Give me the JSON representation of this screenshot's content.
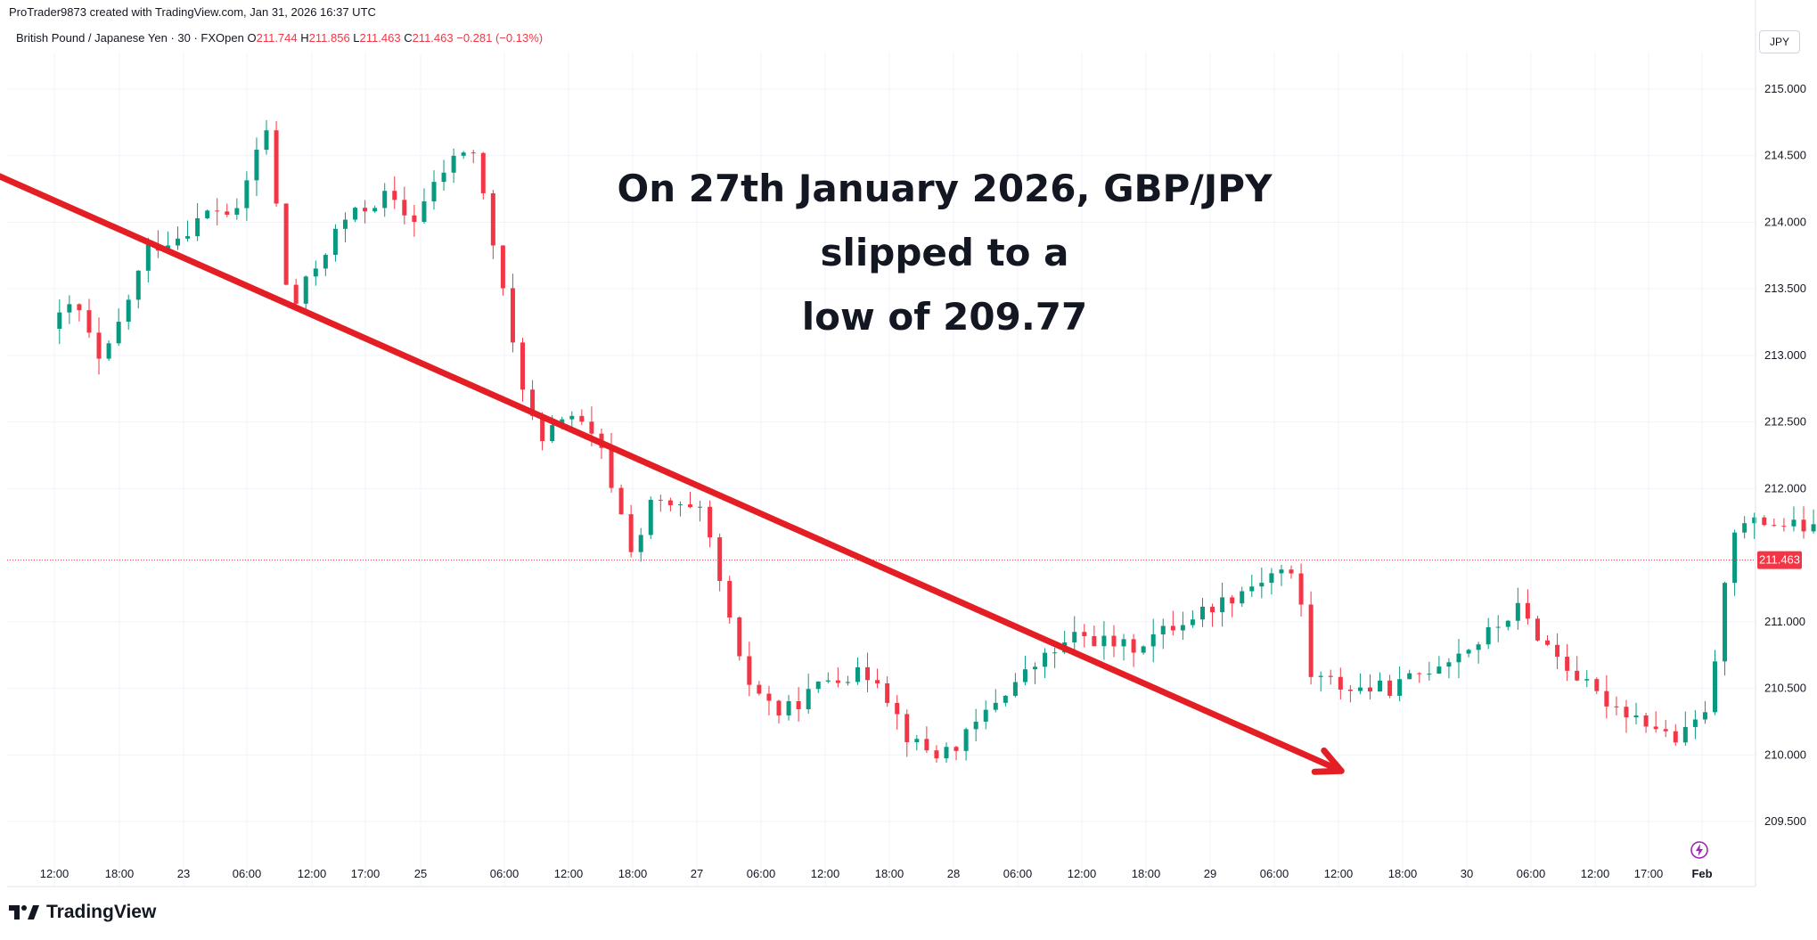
{
  "attribution": "ProTrader9873 created with TradingView.com, Jan 31, 2026 16:37 UTC",
  "legend": {
    "symbol": "British Pound / Japanese Yen · 30 · FXOpen",
    "open_label": "O",
    "open": "211.744",
    "high_label": "H",
    "high": "211.856",
    "low_label": "L",
    "low": "211.463",
    "close_label": "C",
    "close": "211.463",
    "change": "−0.281 (−0.13%)"
  },
  "currency_button": "JPY",
  "annotation": {
    "line1": "On 27th January 2026, GBP/JPY slipped to a",
    "line2": "low of 209.77"
  },
  "brand": {
    "name": "TradingView",
    "icon": "tradingview-logo-icon"
  },
  "flash_icon": "lightning-icon",
  "colors": {
    "up": "#089981",
    "down": "#f23645",
    "arrow": "#e31e24",
    "text": "#131722"
  },
  "chart_data": {
    "type": "candlestick",
    "current_price": 211.463,
    "current_price_label": "211.463",
    "ylim": [
      209.05,
      215.6
    ],
    "yticks": [
      "215.000",
      "214.500",
      "214.000",
      "213.500",
      "213.000",
      "212.500",
      "212.000",
      "211.000",
      "210.500",
      "210.000",
      "209.500"
    ],
    "xticks": [
      "12:00",
      "18:00",
      "23",
      "06:00",
      "12:00",
      "17:00",
      "25",
      "06:00",
      "12:00",
      "18:00",
      "27",
      "06:00",
      "12:00",
      "18:00",
      "28",
      "06:00",
      "12:00",
      "18:00",
      "29",
      "06:00",
      "12:00",
      "18:00",
      "30",
      "06:00",
      "12:00",
      "17:00",
      "Feb"
    ],
    "arrow": {
      "from": [
        22.05,
        214.55
      ],
      "to": [
        27.48,
        209.88
      ]
    },
    "anchors": [
      [
        22.52,
        213.2
      ],
      [
        22.62,
        213.4
      ],
      [
        22.72,
        212.9
      ],
      [
        22.9,
        213.8
      ],
      [
        23.02,
        213.9
      ],
      [
        23.15,
        214.1
      ],
      [
        23.25,
        214.05
      ],
      [
        23.3,
        214.45
      ],
      [
        23.36,
        214.7
      ],
      [
        23.45,
        213.3
      ],
      [
        23.5,
        213.5
      ],
      [
        23.65,
        214.0
      ],
      [
        23.82,
        214.2
      ],
      [
        23.92,
        214.0
      ],
      [
        24.05,
        214.4
      ],
      [
        24.15,
        214.6
      ],
      [
        24.22,
        214.0
      ],
      [
        24.32,
        213.0
      ],
      [
        24.42,
        212.3
      ],
      [
        24.52,
        212.6
      ],
      [
        24.65,
        212.3
      ],
      [
        24.78,
        211.5
      ],
      [
        24.85,
        211.9
      ],
      [
        25.05,
        211.8
      ],
      [
        25.2,
        210.6
      ],
      [
        25.35,
        210.3
      ],
      [
        25.55,
        210.6
      ],
      [
        25.72,
        210.6
      ],
      [
        25.85,
        210.1
      ],
      [
        25.95,
        210.0
      ],
      [
        26.05,
        210.1
      ],
      [
        26.2,
        210.45
      ],
      [
        26.35,
        210.7
      ],
      [
        26.5,
        210.9
      ],
      [
        26.7,
        210.8
      ],
      [
        26.9,
        211.0
      ],
      [
        27.1,
        211.2
      ],
      [
        27.28,
        211.4
      ],
      [
        27.35,
        211.3
      ],
      [
        27.4,
        210.6
      ],
      [
        27.55,
        210.5
      ],
      [
        27.72,
        210.5
      ],
      [
        27.9,
        210.7
      ],
      [
        28.05,
        210.85
      ],
      [
        28.2,
        211.1
      ],
      [
        28.3,
        210.85
      ],
      [
        28.5,
        210.45
      ],
      [
        28.7,
        210.25
      ],
      [
        28.82,
        210.1
      ],
      [
        28.92,
        210.3
      ],
      [
        28.97,
        210.7
      ],
      [
        29.02,
        211.7
      ],
      [
        29.15,
        211.75
      ],
      [
        29.32,
        211.7
      ],
      [
        29.45,
        211.6
      ],
      [
        29.55,
        211.45
      ],
      [
        29.7,
        211.7
      ],
      [
        29.85,
        211.85
      ],
      [
        29.92,
        212.1
      ],
      [
        30.02,
        211.6
      ],
      [
        30.15,
        211.55
      ],
      [
        30.25,
        211.7
      ],
      [
        30.32,
        211.0
      ],
      [
        30.38,
        210.3
      ],
      [
        30.45,
        211.0
      ],
      [
        30.6,
        211.2
      ],
      [
        30.75,
        211.3
      ],
      [
        30.9,
        211.55
      ],
      [
        31.05,
        211.65
      ],
      [
        31.2,
        211.8
      ],
      [
        31.32,
        212.05
      ],
      [
        31.42,
        212.3
      ],
      [
        31.5,
        211.6
      ],
      [
        31.65,
        211.7
      ],
      [
        31.8,
        211.65
      ],
      [
        31.9,
        211.5
      ]
    ]
  }
}
